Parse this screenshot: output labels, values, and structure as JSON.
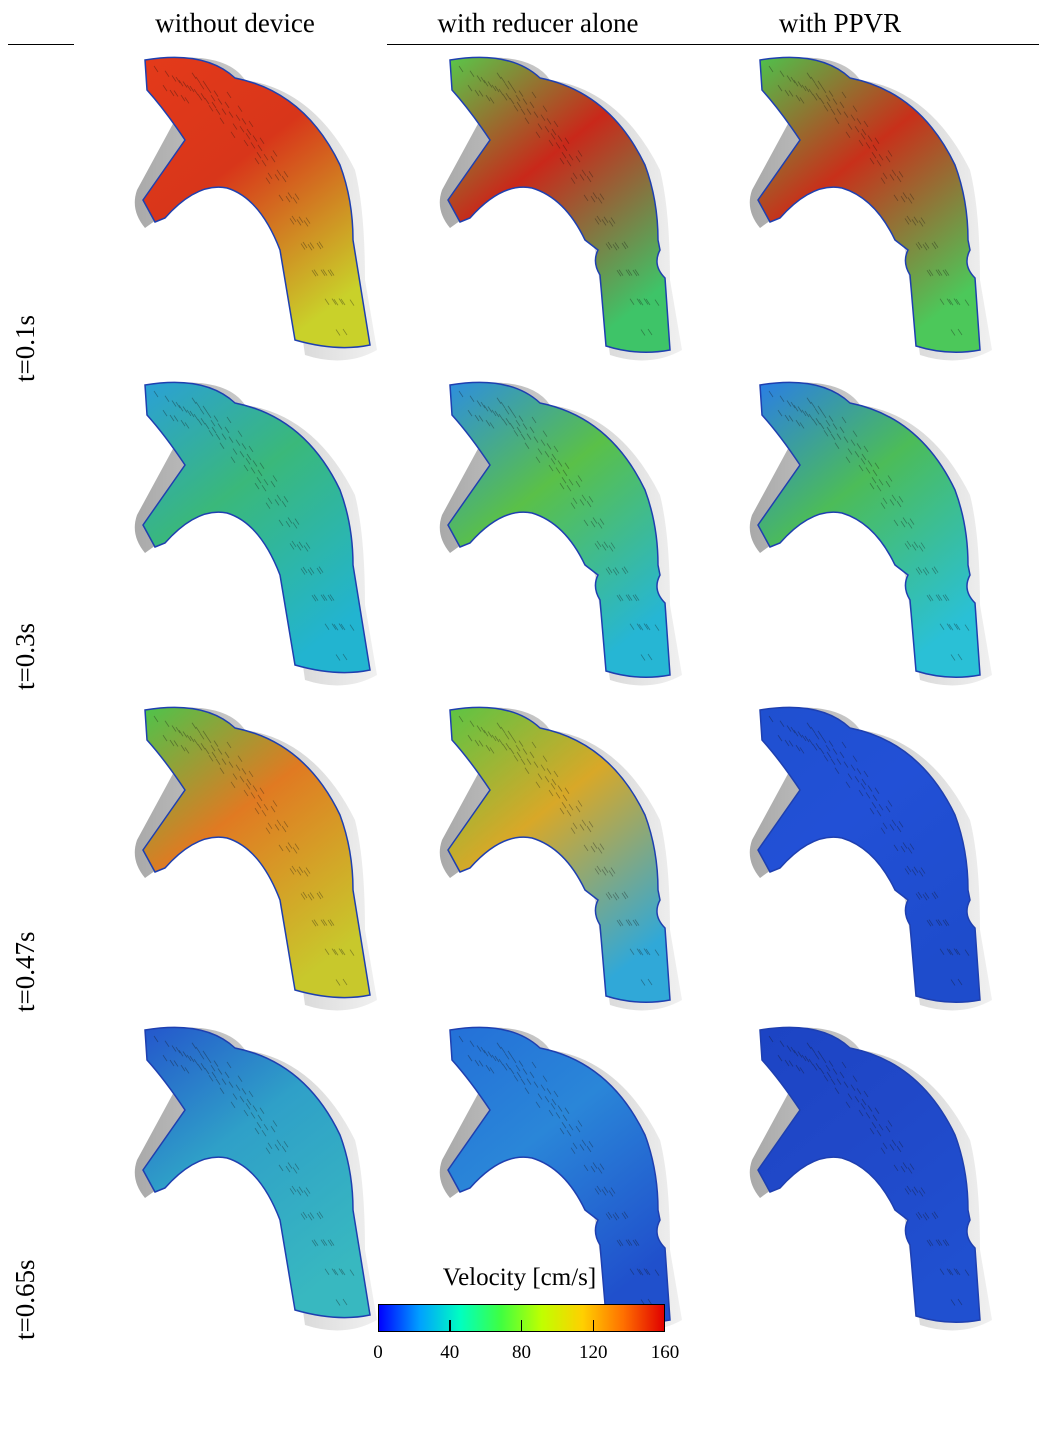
{
  "columns": [
    {
      "label": "without device"
    },
    {
      "label": "with reducer alone"
    },
    {
      "label": "with PPVR"
    }
  ],
  "rows": [
    {
      "label": "t=0.1s"
    },
    {
      "label": "t=0.3s"
    },
    {
      "label": "t=0.47s"
    },
    {
      "label": "t=0.65s"
    }
  ],
  "panels": [
    {
      "row": 0,
      "col": 0,
      "device": "none",
      "inlet": "#e43a1a",
      "arch": "#d8361a",
      "outlet": "#c9d12a"
    },
    {
      "row": 0,
      "col": 1,
      "device": "reducer",
      "inlet": "#58c84a",
      "arch": "#c9281a",
      "outlet": "#3ec468"
    },
    {
      "row": 0,
      "col": 2,
      "device": "ppvr",
      "inlet": "#4ec24c",
      "arch": "#c8301a",
      "outlet": "#4cc85a"
    },
    {
      "row": 1,
      "col": 0,
      "device": "none",
      "inlet": "#2aa0d8",
      "arch": "#3ab87a",
      "outlet": "#22b4d0"
    },
    {
      "row": 1,
      "col": 1,
      "device": "reducer",
      "inlet": "#2d8ee0",
      "arch": "#5ac048",
      "outlet": "#26b6d4"
    },
    {
      "row": 1,
      "col": 2,
      "device": "ppvr",
      "inlet": "#2a7ee6",
      "arch": "#4cbc58",
      "outlet": "#2ac0d6"
    },
    {
      "row": 2,
      "col": 0,
      "device": "none",
      "inlet": "#4cc44c",
      "arch": "#e07a22",
      "outlet": "#c8c82c"
    },
    {
      "row": 2,
      "col": 1,
      "device": "reducer",
      "inlet": "#5cc444",
      "arch": "#d8a828",
      "outlet": "#30a8d8"
    },
    {
      "row": 2,
      "col": 2,
      "device": "ppvr",
      "inlet": "#1f50d0",
      "arch": "#2250d6",
      "outlet": "#1e4ccc"
    },
    {
      "row": 3,
      "col": 0,
      "device": "none",
      "inlet": "#2456cc",
      "arch": "#2fa0c8",
      "outlet": "#38b8c0"
    },
    {
      "row": 3,
      "col": 1,
      "device": "reducer",
      "inlet": "#2470d8",
      "arch": "#2a86d8",
      "outlet": "#2050cc"
    },
    {
      "row": 3,
      "col": 2,
      "device": "ppvr",
      "inlet": "#1c44c4",
      "arch": "#2048c8",
      "outlet": "#2050d0"
    }
  ],
  "colorbar": {
    "title": "Velocity [cm/s]",
    "min": 0,
    "max": 160,
    "ticks": [
      {
        "value": 0,
        "label": "0"
      },
      {
        "value": 40,
        "label": "40"
      },
      {
        "value": 80,
        "label": "80"
      },
      {
        "value": 120,
        "label": "120"
      },
      {
        "value": 160,
        "label": "160"
      }
    ],
    "colors": [
      "#0000ff",
      "#00a0ff",
      "#00ffc0",
      "#40ff40",
      "#c0ff00",
      "#ffd000",
      "#ff7000",
      "#e00000"
    ]
  }
}
